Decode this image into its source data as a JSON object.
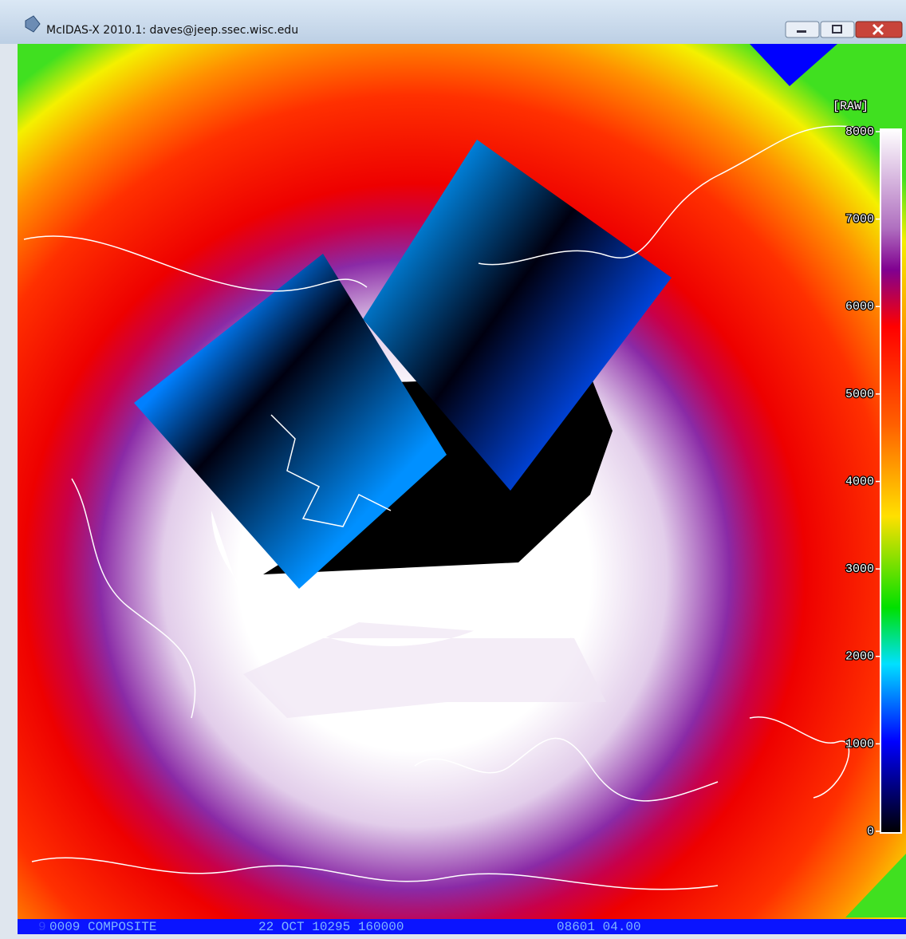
{
  "window": {
    "title": "McIDAS-X 2010.1: daves@jeep.ssec.wisc.edu"
  },
  "colorbar": {
    "unit": "[RAW]",
    "labels": [
      8000,
      7000,
      6000,
      5000,
      4000,
      3000,
      2000,
      1000,
      0
    ]
  },
  "status": {
    "frame": "9",
    "fields": [
      "0009 COMPOSITE",
      "22 OCT 10295 160000",
      "08601 04.00"
    ]
  }
}
